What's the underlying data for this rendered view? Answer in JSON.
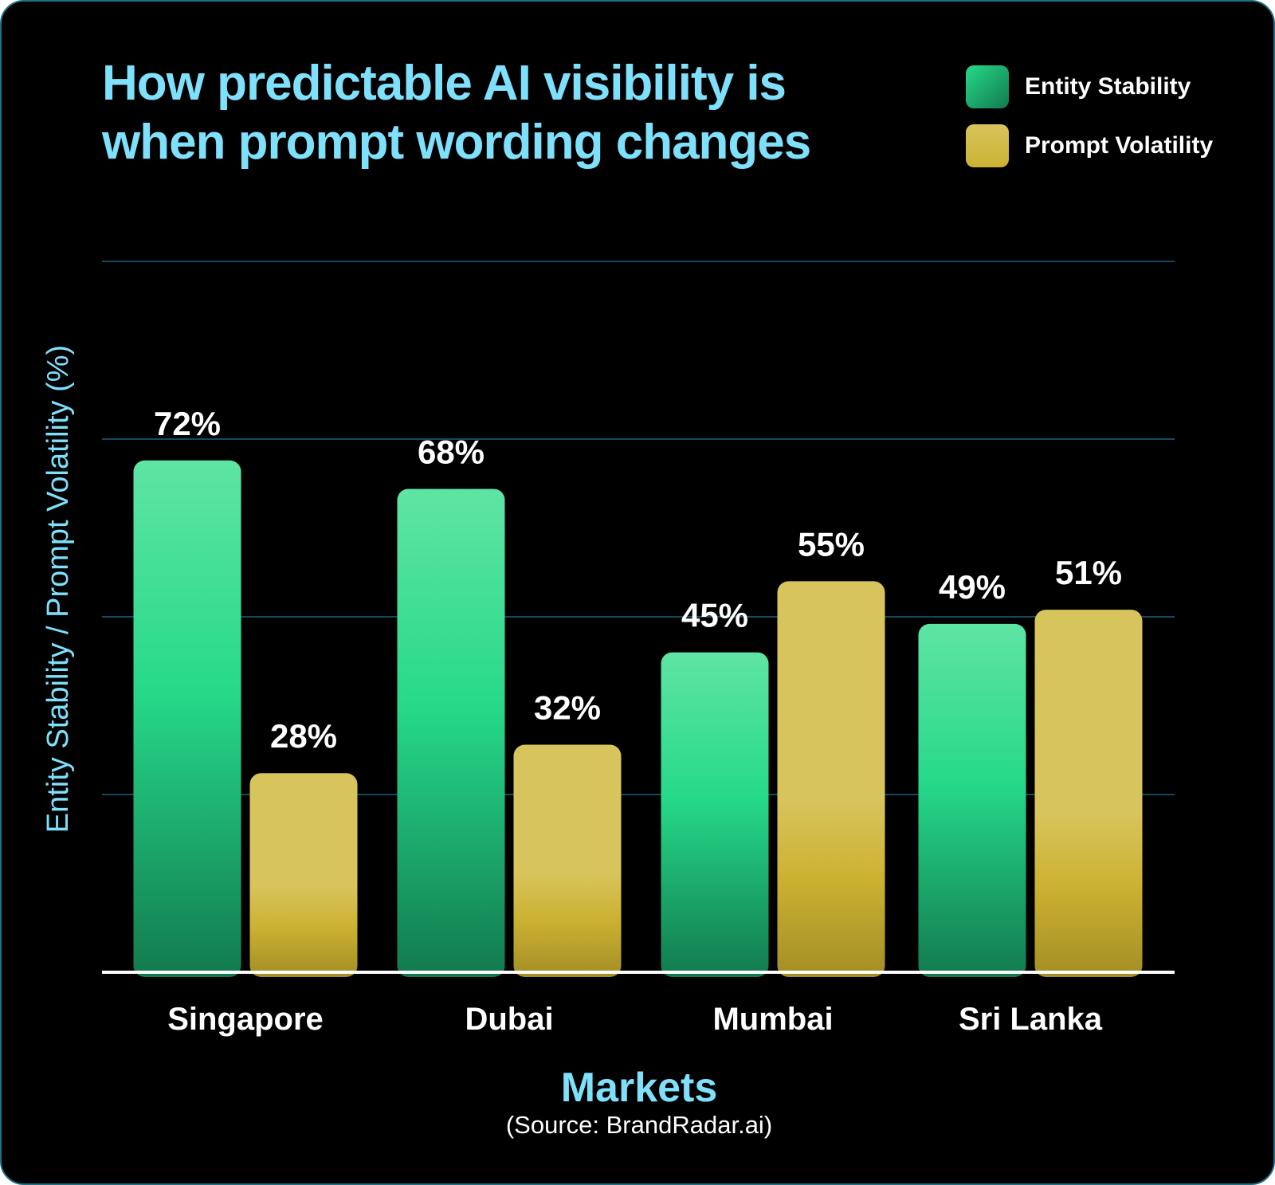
{
  "title": "How predictable AI visibility is when prompt wording changes",
  "source": "(Source: BrandRadar.ai)",
  "colors": {
    "entity_top": "#5fe4a4",
    "entity_mid": "#26d989",
    "entity_bottom": "#127a4f",
    "volatility_top": "#d8c45d",
    "volatility_mid": "#ccb232",
    "volatility_bottom": "#a38e25",
    "title": "#7ee0fb",
    "grid": "#15495c"
  },
  "chart_data": {
    "type": "bar",
    "title": "How predictable AI visibility is when prompt wording changes",
    "xlabel": "Markets",
    "ylabel": "Entity Stability / Prompt Volatility (%)",
    "categories": [
      "Singapore",
      "Dubai",
      "Mumbai",
      "Sri Lanka"
    ],
    "series": [
      {
        "name": "Entity Stability",
        "values": [
          72,
          68,
          45,
          49
        ],
        "labels": [
          "72%",
          "68%",
          "45%",
          "49%"
        ]
      },
      {
        "name": "Prompt Volatility",
        "values": [
          28,
          32,
          55,
          51
        ],
        "labels": [
          "28%",
          "32%",
          "55%",
          "51%"
        ]
      }
    ],
    "ylim": [
      0,
      100
    ],
    "gridlines": [
      25,
      50,
      75,
      100
    ],
    "grid": true,
    "legend": "top-right"
  }
}
